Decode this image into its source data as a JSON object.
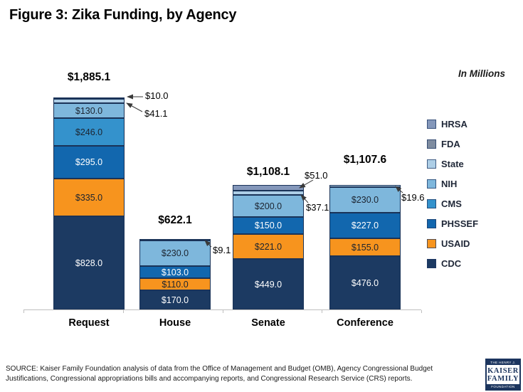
{
  "chart_data": {
    "type": "bar",
    "subtype": "stacked",
    "title": "Figure 3: Zika Funding, by Agency",
    "units_note": "In Millions",
    "categories": [
      "Request",
      "House",
      "Senate",
      "Conference"
    ],
    "totals": [
      "$1,885.1",
      "$622.1",
      "$1,108.1",
      "$1,107.6"
    ],
    "value_unit": "USD millions",
    "series": [
      {
        "name": "CDC",
        "color": "#1c3a62",
        "label_color": "#ffffff",
        "values": [
          828.0,
          170.0,
          449.0,
          476.0
        ]
      },
      {
        "name": "USAID",
        "color": "#f7941e",
        "label_color": "#1c2430",
        "values": [
          335.0,
          110.0,
          221.0,
          155.0
        ]
      },
      {
        "name": "PHSSEF",
        "color": "#1267ae",
        "label_color": "#ffffff",
        "values": [
          295.0,
          103.0,
          150.0,
          227.0
        ]
      },
      {
        "name": "CMS",
        "color": "#3492cc",
        "label_color": "#1c2430",
        "values": [
          246.0,
          0,
          0,
          0
        ]
      },
      {
        "name": "NIH",
        "color": "#7eb7dc",
        "label_color": "#1c2430",
        "values": [
          130.0,
          230.0,
          200.0,
          230.0
        ]
      },
      {
        "name": "State",
        "color": "#adcee6",
        "label_color": "#1c2430",
        "values": [
          41.1,
          9.1,
          37.1,
          19.6
        ]
      },
      {
        "name": "FDA",
        "color": "#7e8ca0",
        "label_color": "#1c2430",
        "values": [
          10.0,
          0,
          0,
          0
        ]
      },
      {
        "name": "HRSA",
        "color": "#8497ba",
        "label_color": "#1c2430",
        "values": [
          0,
          0,
          51.0,
          0
        ]
      }
    ],
    "legend": [
      "HRSA",
      "FDA",
      "State",
      "NIH",
      "CMS",
      "PHSSEF",
      "USAID",
      "CDC"
    ],
    "legend_position": "right",
    "grid": false,
    "callouts": [
      {
        "bar": 0,
        "series": "FDA",
        "label": "$10.0"
      },
      {
        "bar": 0,
        "series": "State",
        "label": "$41.1"
      },
      {
        "bar": 1,
        "series": "State",
        "label": "$9.1"
      },
      {
        "bar": 2,
        "series": "HRSA",
        "label": "$51.0"
      },
      {
        "bar": 2,
        "series": "State",
        "label": "$37.1"
      },
      {
        "bar": 3,
        "series": "State",
        "label": "$19.6"
      }
    ]
  },
  "footer": {
    "source": "SOURCE: Kaiser Family Foundation analysis of data from the Office of Management and Budget (OMB), Agency Congressional Budget Justifications, Congressional appropriations bills and accompanying reports, and Congressional Research Service (CRS) reports."
  },
  "logo": {
    "top": "THE HENRY J.",
    "name1": "KAISER",
    "name2": "FAMILY",
    "bottom": "FOUNDATION"
  }
}
